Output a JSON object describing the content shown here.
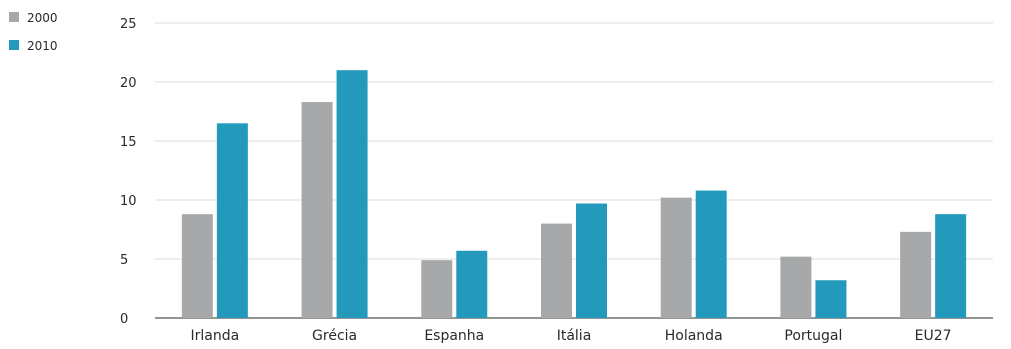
{
  "colors": {
    "series_2000": "#a7a8aa",
    "series_2010": "#2399bb",
    "grid": "#dcdcdc",
    "axis": "#555555"
  },
  "chart_data": {
    "type": "bar",
    "categories": [
      "Irlanda",
      "Grécia",
      "Espanha",
      "Itália",
      "Holanda",
      "Portugal",
      "EU27"
    ],
    "series": [
      {
        "name": "2000",
        "values": [
          8.8,
          18.3,
          4.9,
          8.0,
          10.2,
          5.2,
          7.3
        ]
      },
      {
        "name": "2010",
        "values": [
          16.5,
          21.0,
          5.7,
          9.7,
          10.8,
          3.2,
          8.8
        ]
      }
    ],
    "yticks": [
      "0",
      "5",
      "10",
      "15",
      "20",
      "25"
    ],
    "ylim": [
      0,
      25
    ],
    "grid": true,
    "legend_position": "top-left"
  }
}
